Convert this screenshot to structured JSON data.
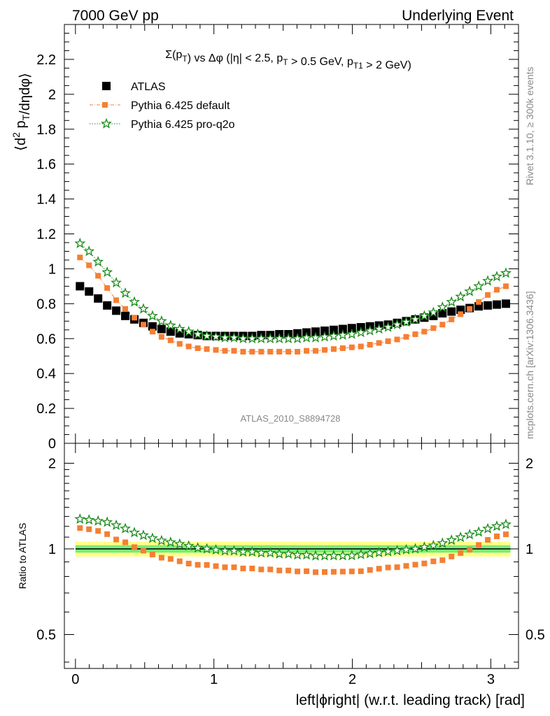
{
  "header": {
    "left": "7000 GeV pp",
    "right": "Underlying Event"
  },
  "side_labels": {
    "rivet": "Rivet 3.1.10, ≥ 300k events",
    "mcplots": "mcplots.cern.ch [arXiv:1306.3436]"
  },
  "watermark": "ATLAS_2010_S8894728",
  "chart_data": {
    "type": "scatter",
    "title": "Σ(p_T) vs Δφ (|η| < 2.5, p_T > 0.5 GeV, p_T1 > 2 GeV)",
    "ylabel": "⟨d² p_T/dηdφ⟩",
    "ratio_ylabel": "Ratio to ATLAS",
    "xlabel": "left|ϕright| (w.r.t. leading track) [rad]",
    "xlim": [
      -0.08,
      3.2
    ],
    "ylim": [
      0,
      2.4
    ],
    "ratio_ylim": [
      0.38,
      2.35
    ],
    "ratio_scale": "log",
    "x_ticks": [
      "0",
      "1",
      "2",
      "3"
    ],
    "y_ticks": [
      "0",
      "0.2",
      "0.4",
      "0.6",
      "0.8",
      "1",
      "1.2",
      "1.4",
      "1.6",
      "1.8",
      "2",
      "2.2"
    ],
    "ratio_ticks": [
      "0.5",
      "1",
      "2"
    ],
    "legend_position": "top-left",
    "grid": false,
    "x": [
      0.0327,
      0.0982,
      0.1636,
      0.2291,
      0.2945,
      0.36,
      0.4254,
      0.4909,
      0.5563,
      0.6218,
      0.6872,
      0.7527,
      0.8181,
      0.8836,
      0.949,
      1.0145,
      1.0799,
      1.1454,
      1.2108,
      1.2763,
      1.3417,
      1.4072,
      1.4726,
      1.5381,
      1.6035,
      1.669,
      1.7344,
      1.7999,
      1.8653,
      1.9308,
      1.9962,
      2.0617,
      2.1271,
      2.1926,
      2.258,
      2.3235,
      2.3889,
      2.4544,
      2.5198,
      2.5853,
      2.6507,
      2.7162,
      2.7816,
      2.8471,
      2.9125,
      2.978,
      3.0434,
      3.1089
    ],
    "series": [
      {
        "name": "ATLAS",
        "color": "#000000",
        "marker": "square",
        "values": [
          0.9,
          0.87,
          0.83,
          0.79,
          0.76,
          0.73,
          0.71,
          0.69,
          0.67,
          0.655,
          0.64,
          0.63,
          0.625,
          0.62,
          0.615,
          0.615,
          0.615,
          0.615,
          0.615,
          0.615,
          0.62,
          0.62,
          0.625,
          0.625,
          0.63,
          0.635,
          0.64,
          0.645,
          0.65,
          0.655,
          0.66,
          0.665,
          0.67,
          0.675,
          0.68,
          0.69,
          0.7,
          0.71,
          0.72,
          0.73,
          0.745,
          0.755,
          0.765,
          0.775,
          0.785,
          0.79,
          0.795,
          0.8
        ]
      },
      {
        "name": "Pythia 6.425 default",
        "color": "#f57f32",
        "marker": "square-small",
        "line": "dash-dot",
        "values": [
          1.065,
          1.02,
          0.96,
          0.89,
          0.82,
          0.77,
          0.72,
          0.68,
          0.64,
          0.61,
          0.59,
          0.57,
          0.555,
          0.545,
          0.54,
          0.535,
          0.53,
          0.53,
          0.525,
          0.525,
          0.525,
          0.525,
          0.525,
          0.525,
          0.525,
          0.53,
          0.53,
          0.535,
          0.54,
          0.545,
          0.55,
          0.555,
          0.565,
          0.575,
          0.585,
          0.595,
          0.61,
          0.625,
          0.64,
          0.66,
          0.68,
          0.71,
          0.74,
          0.77,
          0.81,
          0.85,
          0.88,
          0.9
        ]
      },
      {
        "name": "Pythia 6.425 pro-q2o",
        "color": "#1a8a1a",
        "marker": "star",
        "line": "dotted",
        "values": [
          1.145,
          1.1,
          1.04,
          0.98,
          0.92,
          0.86,
          0.81,
          0.77,
          0.73,
          0.7,
          0.675,
          0.655,
          0.64,
          0.625,
          0.615,
          0.61,
          0.605,
          0.605,
          0.6,
          0.6,
          0.6,
          0.6,
          0.6,
          0.6,
          0.6,
          0.605,
          0.605,
          0.61,
          0.615,
          0.62,
          0.625,
          0.635,
          0.645,
          0.655,
          0.665,
          0.68,
          0.695,
          0.71,
          0.73,
          0.75,
          0.78,
          0.81,
          0.84,
          0.87,
          0.9,
          0.93,
          0.955,
          0.975
        ]
      }
    ]
  }
}
